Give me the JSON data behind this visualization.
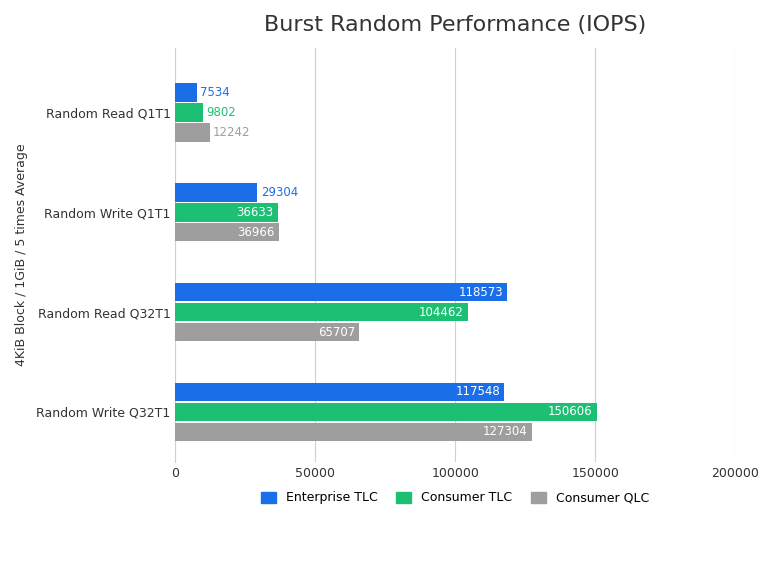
{
  "title": "Burst Random Performance (IOPS)",
  "ylabel": "4KiB Block / 1GiB / 5 times Average",
  "categories": [
    "Random Write Q32T1",
    "Random Read Q32T1",
    "Random Write Q1T1",
    "Random Read Q1T1"
  ],
  "series": [
    {
      "name": "Enterprise TLC",
      "color": "#1a6fe8",
      "values": [
        117548,
        118573,
        29304,
        7534
      ]
    },
    {
      "name": "Consumer TLC",
      "color": "#1dbf73",
      "values": [
        150606,
        104462,
        36633,
        9802
      ]
    },
    {
      "name": "Consumer QLC",
      "color": "#9e9e9e",
      "values": [
        127304,
        65707,
        36966,
        12242
      ]
    }
  ],
  "xlim": [
    0,
    200000
  ],
  "xticks": [
    0,
    50000,
    100000,
    150000,
    200000
  ],
  "xtick_labels": [
    "0",
    "50000",
    "100000",
    "150000",
    "200000"
  ],
  "bar_height": 0.2,
  "background_color": "#ffffff",
  "grid_color": "#d0d0d0",
  "title_fontsize": 16,
  "label_fontsize": 9,
  "tick_fontsize": 9,
  "value_label_fontsize": 8.5,
  "inside_threshold": 30000
}
